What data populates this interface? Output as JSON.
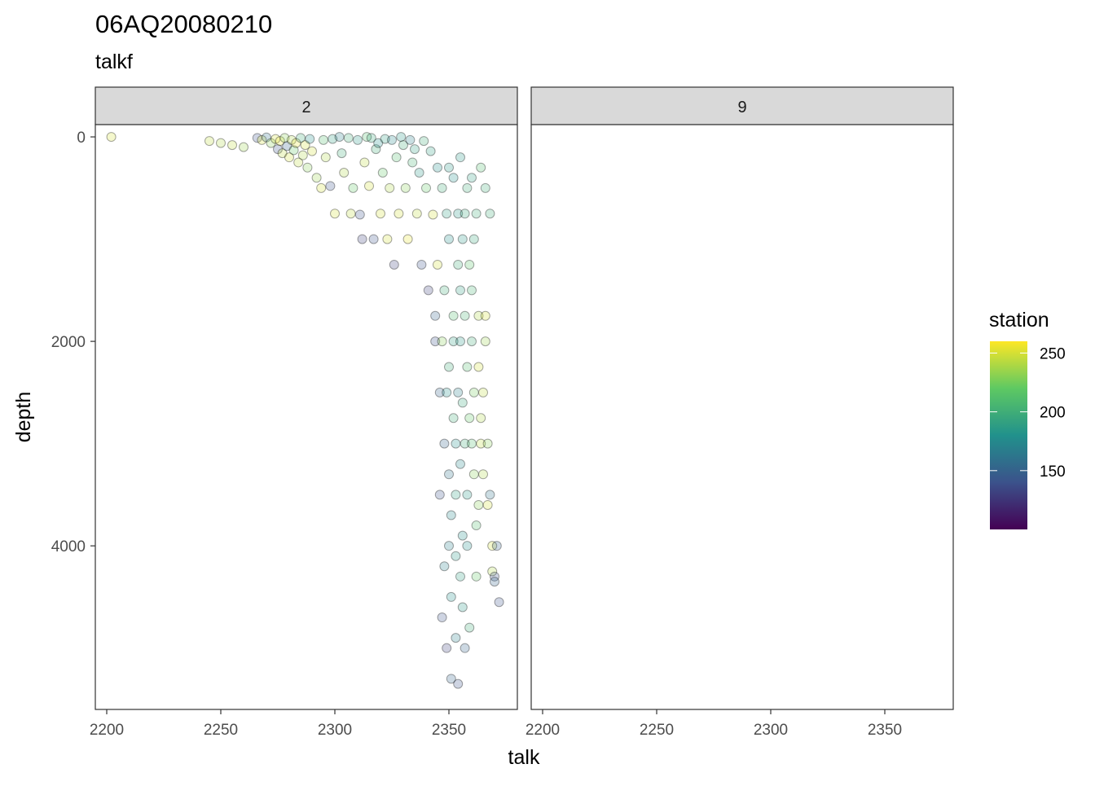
{
  "chart_data": {
    "type": "scatter",
    "title": "06AQ20080210",
    "subtitle": "talkf",
    "xlabel": "talk",
    "ylabel": "depth",
    "facet_var": "talkf",
    "facets": [
      "2",
      "9"
    ],
    "xlim": [
      2195,
      2380
    ],
    "ylim": [
      -120,
      5600
    ],
    "y_reversed": true,
    "x_ticks": [
      2200,
      2250,
      2300,
      2350
    ],
    "y_ticks": [
      0,
      2000,
      4000
    ],
    "grid": false,
    "colorbar": {
      "title": "station",
      "range": [
        100,
        260
      ],
      "ticks": [
        250,
        200,
        150
      ],
      "palette": [
        "#440154",
        "#3b528b",
        "#21918c",
        "#5ec962",
        "#fde725"
      ],
      "placement": "right"
    },
    "point_style": {
      "alpha": 0.25,
      "stroke": "#000000"
    },
    "series": [
      {
        "facet": "2",
        "note_points": "representative subset of the dense point cloud",
        "points": [
          [
            2202,
            0,
            250
          ],
          [
            2245,
            40,
            245
          ],
          [
            2250,
            60,
            240
          ],
          [
            2255,
            80,
            245
          ],
          [
            2260,
            100,
            235
          ],
          [
            2266,
            10,
            140
          ],
          [
            2268,
            30,
            250
          ],
          [
            2270,
            5,
            160
          ],
          [
            2272,
            60,
            230
          ],
          [
            2274,
            20,
            250
          ],
          [
            2275,
            120,
            140
          ],
          [
            2276,
            40,
            255
          ],
          [
            2277,
            160,
            245
          ],
          [
            2278,
            10,
            230
          ],
          [
            2279,
            90,
            150
          ],
          [
            2280,
            200,
            250
          ],
          [
            2281,
            30,
            240
          ],
          [
            2282,
            130,
            220
          ],
          [
            2283,
            60,
            255
          ],
          [
            2284,
            250,
            245
          ],
          [
            2285,
            10,
            200
          ],
          [
            2286,
            180,
            240
          ],
          [
            2287,
            80,
            250
          ],
          [
            2288,
            300,
            230
          ],
          [
            2289,
            20,
            180
          ],
          [
            2290,
            140,
            250
          ],
          [
            2292,
            400,
            235
          ],
          [
            2294,
            500,
            250
          ],
          [
            2295,
            30,
            210
          ],
          [
            2296,
            200,
            240
          ],
          [
            2298,
            480,
            140
          ],
          [
            2299,
            20,
            190
          ],
          [
            2300,
            750,
            250
          ],
          [
            2302,
            0,
            170
          ],
          [
            2303,
            160,
            200
          ],
          [
            2304,
            350,
            240
          ],
          [
            2306,
            10,
            200
          ],
          [
            2307,
            750,
            245
          ],
          [
            2308,
            500,
            220
          ],
          [
            2310,
            30,
            185
          ],
          [
            2311,
            760,
            140
          ],
          [
            2312,
            1000,
            130
          ],
          [
            2313,
            250,
            245
          ],
          [
            2314,
            0,
            210
          ],
          [
            2315,
            480,
            250
          ],
          [
            2316,
            10,
            195
          ],
          [
            2317,
            1000,
            140
          ],
          [
            2318,
            120,
            200
          ],
          [
            2319,
            60,
            180
          ],
          [
            2320,
            750,
            250
          ],
          [
            2321,
            350,
            220
          ],
          [
            2322,
            20,
            190
          ],
          [
            2323,
            1000,
            250
          ],
          [
            2324,
            500,
            240
          ],
          [
            2325,
            30,
            175
          ],
          [
            2326,
            1250,
            130
          ],
          [
            2327,
            200,
            210
          ],
          [
            2328,
            750,
            250
          ],
          [
            2329,
            0,
            185
          ],
          [
            2330,
            80,
            200
          ],
          [
            2331,
            500,
            230
          ],
          [
            2332,
            1000,
            255
          ],
          [
            2333,
            30,
            170
          ],
          [
            2334,
            250,
            205
          ],
          [
            2335,
            120,
            190
          ],
          [
            2336,
            750,
            245
          ],
          [
            2337,
            350,
            185
          ],
          [
            2338,
            1250,
            140
          ],
          [
            2339,
            40,
            200
          ],
          [
            2340,
            500,
            220
          ],
          [
            2341,
            1500,
            130
          ],
          [
            2342,
            140,
            190
          ],
          [
            2343,
            760,
            250
          ],
          [
            2344,
            2000,
            140
          ],
          [
            2344,
            1750,
            150
          ],
          [
            2345,
            300,
            180
          ],
          [
            2345,
            1250,
            250
          ],
          [
            2346,
            2500,
            150
          ],
          [
            2346,
            3500,
            140
          ],
          [
            2347,
            500,
            200
          ],
          [
            2347,
            2000,
            230
          ],
          [
            2347,
            4700,
            140
          ],
          [
            2348,
            3000,
            150
          ],
          [
            2348,
            4200,
            170
          ],
          [
            2348,
            1500,
            200
          ],
          [
            2349,
            2500,
            180
          ],
          [
            2349,
            750,
            190
          ],
          [
            2349,
            5000,
            130
          ],
          [
            2350,
            3300,
            160
          ],
          [
            2350,
            4000,
            170
          ],
          [
            2350,
            300,
            185
          ],
          [
            2350,
            1000,
            180
          ],
          [
            2350,
            2250,
            200
          ],
          [
            2351,
            3700,
            175
          ],
          [
            2351,
            4500,
            180
          ],
          [
            2351,
            5300,
            150
          ],
          [
            2352,
            2000,
            190
          ],
          [
            2352,
            2750,
            200
          ],
          [
            2352,
            1750,
            210
          ],
          [
            2352,
            400,
            180
          ],
          [
            2353,
            3000,
            180
          ],
          [
            2353,
            3500,
            190
          ],
          [
            2353,
            4100,
            185
          ],
          [
            2353,
            4900,
            170
          ],
          [
            2354,
            1250,
            200
          ],
          [
            2354,
            2500,
            170
          ],
          [
            2354,
            750,
            185
          ],
          [
            2354,
            5350,
            140
          ],
          [
            2355,
            4300,
            190
          ],
          [
            2355,
            3200,
            175
          ],
          [
            2355,
            1500,
            190
          ],
          [
            2355,
            2000,
            185
          ],
          [
            2355,
            200,
            185
          ],
          [
            2356,
            3900,
            180
          ],
          [
            2356,
            2600,
            195
          ],
          [
            2356,
            4600,
            185
          ],
          [
            2356,
            1000,
            185
          ],
          [
            2357,
            3000,
            200
          ],
          [
            2357,
            750,
            195
          ],
          [
            2357,
            5000,
            150
          ],
          [
            2357,
            1750,
            205
          ],
          [
            2358,
            2250,
            210
          ],
          [
            2358,
            3500,
            185
          ],
          [
            2358,
            4000,
            180
          ],
          [
            2358,
            500,
            200
          ],
          [
            2359,
            1250,
            215
          ],
          [
            2359,
            2750,
            220
          ],
          [
            2359,
            4800,
            200
          ],
          [
            2360,
            3000,
            210
          ],
          [
            2360,
            1500,
            205
          ],
          [
            2360,
            400,
            190
          ],
          [
            2360,
            2000,
            200
          ],
          [
            2361,
            3300,
            230
          ],
          [
            2361,
            2500,
            225
          ],
          [
            2361,
            1000,
            195
          ],
          [
            2362,
            750,
            200
          ],
          [
            2362,
            3800,
            210
          ],
          [
            2362,
            4300,
            220
          ],
          [
            2363,
            2250,
            250
          ],
          [
            2363,
            1750,
            240
          ],
          [
            2363,
            3600,
            230
          ],
          [
            2364,
            2750,
            240
          ],
          [
            2364,
            3000,
            245
          ],
          [
            2364,
            300,
            210
          ],
          [
            2365,
            2500,
            245
          ],
          [
            2365,
            3300,
            240
          ],
          [
            2366,
            1750,
            250
          ],
          [
            2366,
            2000,
            235
          ],
          [
            2366,
            500,
            200
          ],
          [
            2367,
            3000,
            230
          ],
          [
            2367,
            3600,
            250
          ],
          [
            2368,
            750,
            200
          ],
          [
            2368,
            3500,
            160
          ],
          [
            2369,
            4000,
            250
          ],
          [
            2369,
            4250,
            240
          ],
          [
            2370,
            4300,
            140
          ],
          [
            2370,
            4350,
            150
          ],
          [
            2371,
            4000,
            150
          ],
          [
            2372,
            4550,
            140
          ]
        ]
      },
      {
        "facet": "9",
        "points": []
      }
    ]
  }
}
